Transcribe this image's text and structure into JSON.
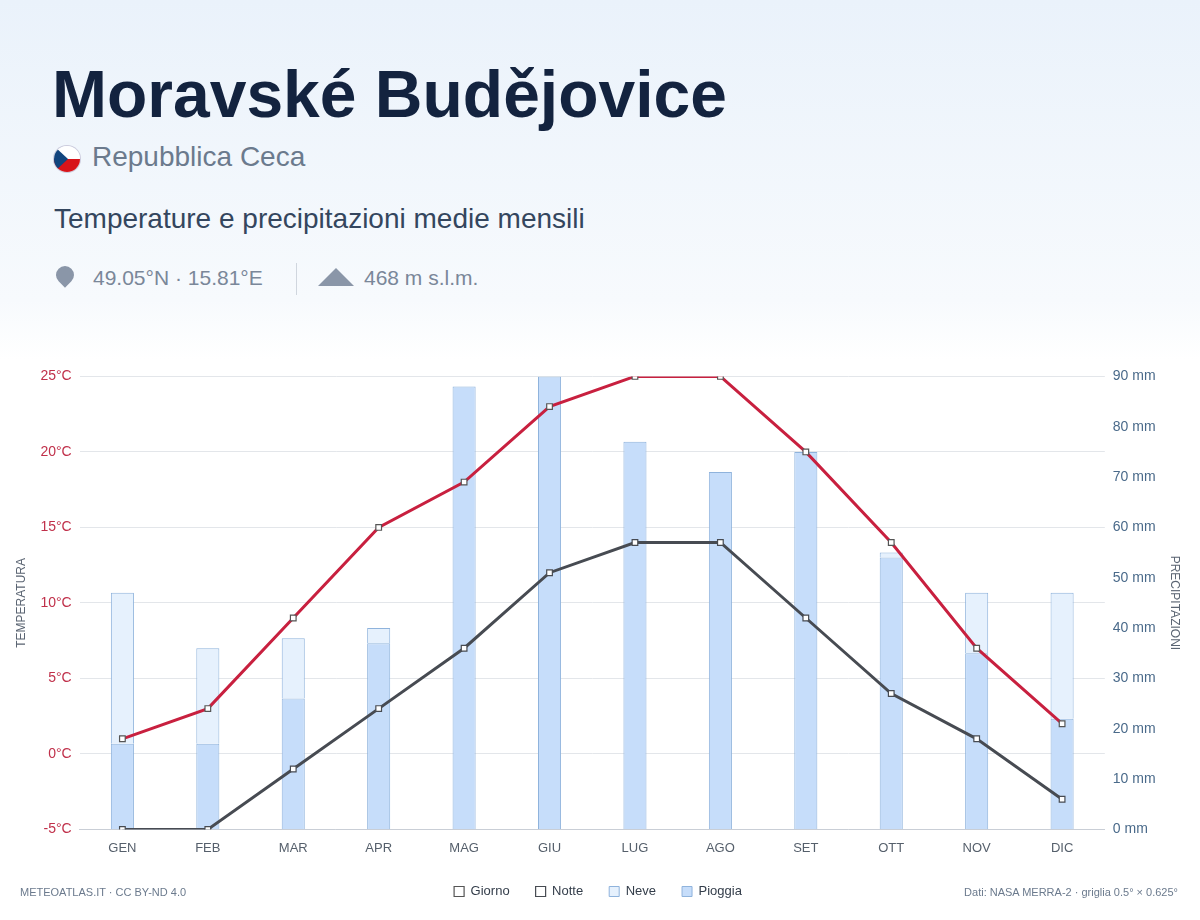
{
  "header": {
    "title": "Moravské Budějovice",
    "country": "Repubblica Ceca",
    "subtitle": "Temperature e precipitazioni medie mensili",
    "coordinates": "49.05°N · 15.81°E",
    "elevation": "468 m s.l.m.",
    "source_left": "METEOATLAS.IT · CC BY-ND 4.0",
    "source_right": "Dati: NASA MERRA-2 · griglia 0.5° × 0.625°"
  },
  "chart_data": {
    "type": "bar",
    "categories": [
      "GEN",
      "FEB",
      "MAR",
      "APR",
      "MAG",
      "GIU",
      "LUG",
      "AGO",
      "SET",
      "OTT",
      "NOV",
      "DIC"
    ],
    "series": [
      {
        "name": "Giorno",
        "type": "line",
        "color": "#c8203f",
        "marker": "square",
        "line_style": "solid",
        "values": [
          1,
          3,
          9,
          15,
          18,
          23,
          25,
          25,
          20,
          14,
          7,
          2
        ]
      },
      {
        "name": "Notte",
        "type": "line",
        "color": "#474b52",
        "marker": "square",
        "line_style": "solid",
        "values": [
          -5,
          -5,
          -1,
          3,
          7,
          12,
          14,
          14,
          9,
          4,
          1,
          -3
        ]
      },
      {
        "name": "Neve",
        "type": "bar",
        "axis": "y2",
        "color": "#e6f1fd",
        "values": [
          30,
          19,
          12,
          3,
          0,
          0,
          0,
          0,
          0,
          1,
          12,
          25
        ]
      },
      {
        "name": "Pioggia",
        "type": "bar",
        "axis": "y2",
        "color": "#c6ddfa",
        "values": [
          17,
          17,
          26,
          37,
          88,
          90,
          77,
          71,
          75,
          54,
          35,
          22
        ]
      }
    ],
    "y_label": "TEMPERATURA",
    "y2_label": "PRECIPITAZIONI",
    "ylim": [
      -5,
      25
    ],
    "yticks": [
      {
        "value": -5,
        "label": "-5°C"
      },
      {
        "value": 0,
        "label": "0°C"
      },
      {
        "value": 5,
        "label": "5°C"
      },
      {
        "value": 10,
        "label": "10°C"
      },
      {
        "value": 15,
        "label": "15°C"
      },
      {
        "value": 20,
        "label": "20°C"
      },
      {
        "value": 25,
        "label": "25°C"
      }
    ],
    "y2lim": [
      0,
      90
    ],
    "y2ticks": [
      {
        "value": 0,
        "label": "0 mm"
      },
      {
        "value": 10,
        "label": "10 mm"
      },
      {
        "value": 20,
        "label": "20 mm"
      },
      {
        "value": 30,
        "label": "30 mm"
      },
      {
        "value": 40,
        "label": "40 mm"
      },
      {
        "value": 50,
        "label": "50 mm"
      },
      {
        "value": 60,
        "label": "60 mm"
      },
      {
        "value": 70,
        "label": "70 mm"
      },
      {
        "value": 80,
        "label": "80 mm"
      },
      {
        "value": 90,
        "label": "90 mm"
      }
    ],
    "stacked": true,
    "grid": true,
    "legend": "bottom"
  }
}
